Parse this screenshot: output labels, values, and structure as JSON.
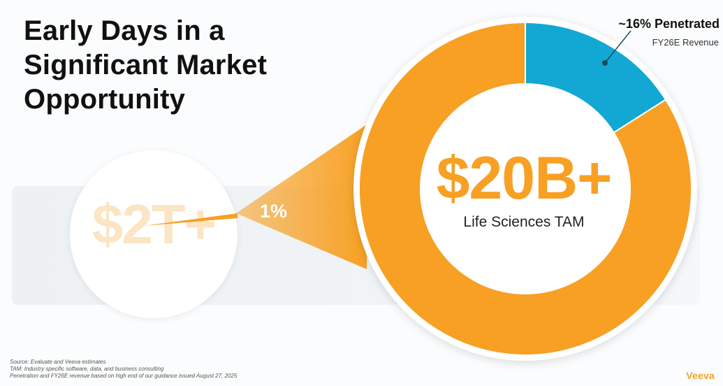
{
  "title_lines": [
    "Early Days in a",
    "Significant Market",
    "Opportunity"
  ],
  "market": {
    "value_label": "$2T+",
    "share_label": "1%"
  },
  "chart_data": {
    "type": "pie",
    "style": "donut",
    "center_value": "$20B+",
    "center_label": "Life Sciences TAM",
    "slices": [
      {
        "label": "~16% Penetrated",
        "sublabel": "FY26E Revenue",
        "value": 16,
        "color": "#12a8d3"
      },
      {
        "label": "",
        "value": 84,
        "color": "#f7a023"
      }
    ]
  },
  "footnotes": [
    "Source: Evaluate and Veeva estimates",
    "TAM: Industry specific software, data, and business consulting",
    "Penetration and FY26E revenue based on high end of our guidance issued August 27, 2025"
  ],
  "logo_text": "Veeva",
  "colors": {
    "orange": "#f7a023",
    "blue": "#12a8d3",
    "faded_orange": "#fce5c4"
  }
}
